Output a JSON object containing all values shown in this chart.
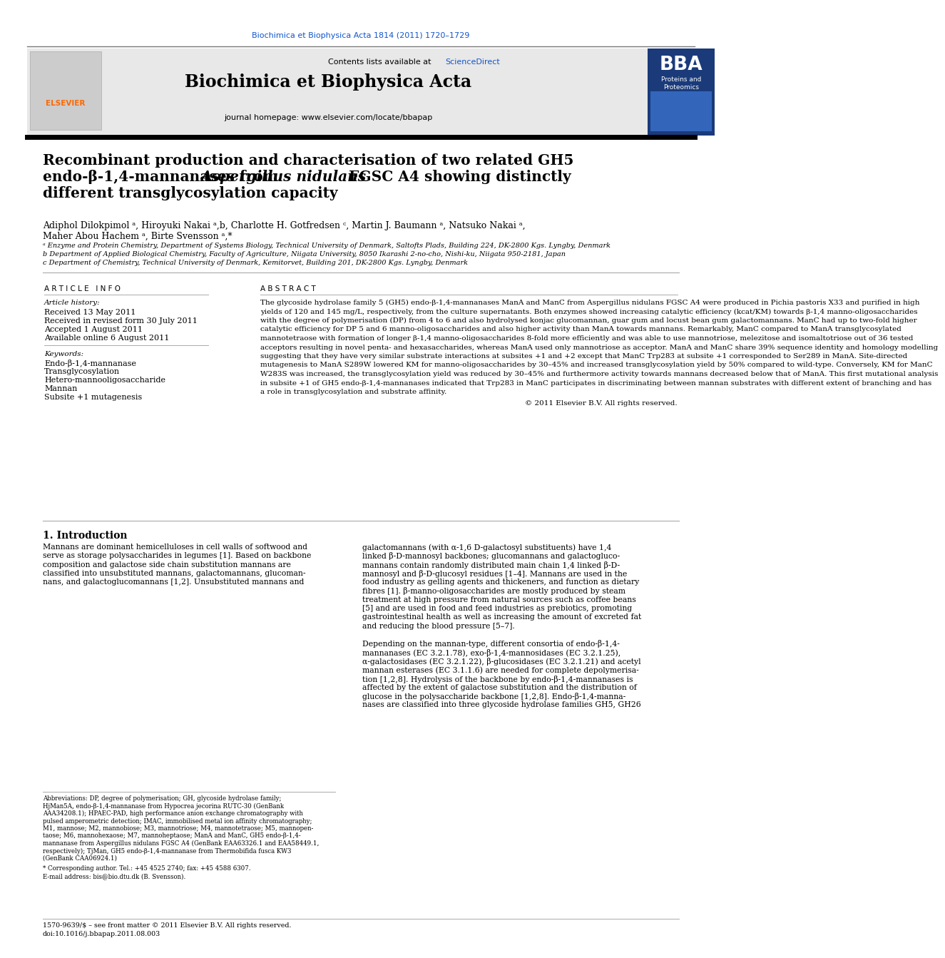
{
  "journal_link": "Biochimica et Biophysica Acta 1814 (2011) 1720–1729",
  "contents_line_prefix": "Contents lists available at ",
  "contents_line_link": "ScienceDirect",
  "journal_name": "Biochimica et Biophysica Acta",
  "journal_homepage": "journal homepage: www.elsevier.com/locate/bbapap",
  "title_line1": "Recombinant production and characterisation of two related GH5",
  "title_line2a": "endo-β-1,4-mannanases from ",
  "title_line2b": "Aspergillus nidulans",
  "title_line2c": " FGSC A4 showing distinctly",
  "title_line3": "different transglycosylation capacity",
  "author_line1": "Adiphol Dilokpimol ᵃ, Hiroyuki Nakai ᵃ,b, Charlotte H. Gotfredsen ᶜ, Martin J. Baumann ᵃ, Natsuko Nakai ᵃ,",
  "author_line2": "Maher Abou Hachem ᵃ, Birte Svensson ᵃ,*",
  "affil_a": "ᵃ Enzyme and Protein Chemistry, Department of Systems Biology, Technical University of Denmark, Saltofts Plads, Building 224, DK-2800 Kgs. Lyngby, Denmark",
  "affil_b": "b Department of Applied Biological Chemistry, Faculty of Agriculture, Niigata University, 8050 Ikarashi 2-no-cho, Nishi-ku, Niigata 950-2181, Japan",
  "affil_c": "c Department of Chemistry, Technical University of Denmark, Kemitorvet, Building 201, DK-2800 Kgs. Lyngby, Denmark",
  "article_info_header": "A R T I C L E   I N F O",
  "article_history_header": "Article history:",
  "received": "Received 13 May 2011",
  "revised": "Received in revised form 30 July 2011",
  "accepted": "Accepted 1 August 2011",
  "online": "Available online 6 August 2011",
  "keywords_header": "Keywords:",
  "keywords": [
    "Endo-β-1,4-mannanase",
    "Transglycosylation",
    "Hetero-mannooligosaccharide",
    "Mannan",
    "Subsite +1 mutagenesis"
  ],
  "abstract_header": "A B S T R A C T",
  "abstract_lines": [
    "The glycoside hydrolase family 5 (GH5) endo-β-1,4-mannanases ManA and ManC from Aspergillus nidulans FGSC A4 were produced in Pichia pastoris X33 and purified in high",
    "yields of 120 and 145 mg/L, respectively, from the culture supernatants. Both enzymes showed increasing catalytic efficiency (kcat/KM) towards β-1,4 manno-oligosaccharides",
    "with the degree of polymerisation (DP) from 4 to 6 and also hydrolysed konjac glucomannan, guar gum and locust bean gum galactomannans. ManC had up to two-fold higher",
    "catalytic efficiency for DP 5 and 6 manno-oligosaccharides and also higher activity than ManA towards mannans. Remarkably, ManC compared to ManA transglycosylated",
    "mannotetraose with formation of longer β-1,4 manno-oligosaccharides 8-fold more efficiently and was able to use mannotriose, melezitose and isomaltotriose out of 36 tested",
    "acceptors resulting in novel penta- and hexasaccharides, whereas ManA used only mannotriose as acceptor. ManA and ManC share 39% sequence identity and homology modelling",
    "suggesting that they have very similar substrate interactions at subsites +1 and +2 except that ManC Trp283 at subsite +1 corresponded to Ser289 in ManA. Site-directed",
    "mutagenesis to ManA S289W lowered KM for manno-oligosaccharides by 30–45% and increased transglycosylation yield by 50% compared to wild-type. Conversely, KM for ManC",
    "W283S was increased, the transglycosylation yield was reduced by 30–45% and furthermore activity towards mannans decreased below that of ManA. This first mutational analysis",
    "in subsite +1 of GH5 endo-β-1,4-mannanases indicated that Trp283 in ManC participates in discriminating between mannan substrates with different extent of branching and has",
    "a role in transglycosylation and substrate affinity."
  ],
  "copyright": "© 2011 Elsevier B.V. All rights reserved.",
  "section1_header": "1. Introduction",
  "intro_col1_lines": [
    "Mannans are dominant hemicelluloses in cell walls of softwood and",
    "serve as storage polysaccharides in legumes [1]. Based on backbone",
    "composition and galactose side chain substitution mannans are",
    "classified into unsubstituted mannans, galactomannans, glucoman-",
    "nans, and galactoglucomannans [1,2]. Unsubstituted mannans and"
  ],
  "intro_col2_lines": [
    "galactomannans (with α-1,6 D-galactosyl substituents) have 1,4",
    "linked β-D-mannosyl backbones; glucomannans and galactogluco-",
    "mannans contain randomly distributed main chain 1,4 linked β-D-",
    "mannosyl and β-D-glucosyl residues [1–4]. Mannans are used in the",
    "food industry as gelling agents and thickeners, and function as dietary",
    "fibres [1]. β-manno-oligosaccharides are mostly produced by steam",
    "treatment at high pressure from natural sources such as coffee beans",
    "[5] and are used in food and feed industries as prebiotics, promoting",
    "gastrointestinal health as well as increasing the amount of excreted fat",
    "and reducing the blood pressure [5–7].",
    "",
    "Depending on the mannan-type, different consortia of endo-β-1,4-",
    "mannanases (EC 3.2.1.78), exo-β-1,4-mannosidases (EC 3.2.1.25),",
    "α-galactosidases (EC 3.2.1.22), β-glucosidases (EC 3.2.1.21) and acetyl",
    "mannan esterases (EC 3.1.1.6) are needed for complete depolymerisa-",
    "tion [1,2,8]. Hydrolysis of the backbone by endo-β-1,4-mannanases is",
    "affected by the extent of galactose substitution and the distribution of",
    "glucose in the polysaccharide backbone [1,2,8]. Endo-β-1,4-manna-",
    "nases are classified into three glycoside hydrolase families GH5, GH26"
  ],
  "abbrev_lines": [
    "Abbreviations: DP, degree of polymerisation; GH, glycoside hydrolase family;",
    "HjMan5A, endo-β-1,4-mannanase from Hypocrea jecorina RUTC-30 (GenBank",
    "AAA34208.1); HPAEC-PAD, high performance anion exchange chromatography with",
    "pulsed amperometric detection; IMAC, immobilised metal ion affinity chromatography;",
    "M1, mannose; M2, mannobiose; M3, mannotriose; M4, mannotetraose; M5, mannopen-",
    "taose; M6, mannohexaose; M7, mannoheptaose; ManA and ManC, GH5 endo-β-1,4-",
    "mannanase from Aspergillus nidulans FGSC A4 (GenBank EAA63326.1 and EAA58449.1,",
    "respectively); TjMan, GH5 endo-β-1,4-mannanase from Thermobifida fusca KW3",
    "(GenBank CAA06924.1)"
  ],
  "corr_author_lines": [
    "* Corresponding author. Tel.: +45 4525 2740; fax: +45 4588 6307.",
    "E-mail address: bis@bio.dtu.dk (B. Svensson)."
  ],
  "issn_line": "1570-9639/$ – see front matter © 2011 Elsevier B.V. All rights reserved.",
  "doi_line": "doi:10.1016/j.bbapap.2011.08.003",
  "header_bg_color": "#e8e8e8",
  "blue_link_color": "#1155CC",
  "elsevier_orange": "#FF6600",
  "bba_blue": "#1a3a7a"
}
